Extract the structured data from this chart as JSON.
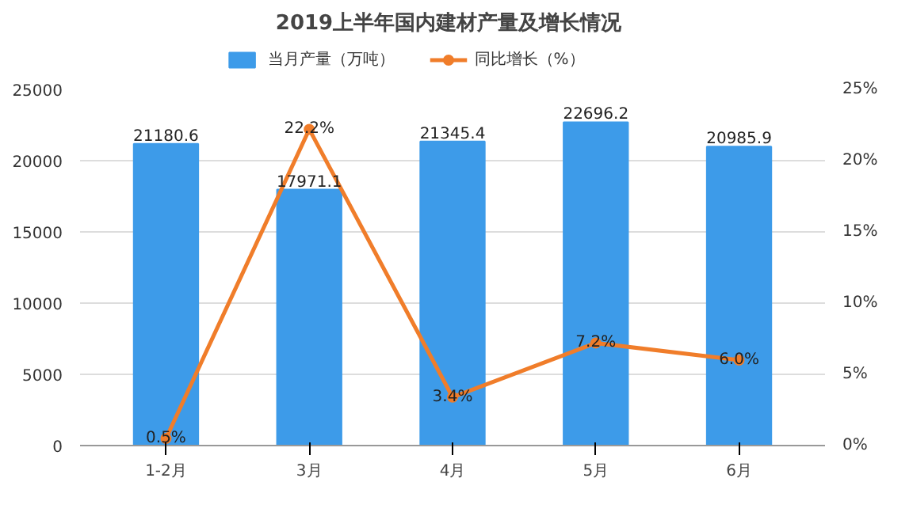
{
  "chart_data": {
    "type": "bar",
    "title": "2019上半年国内建材产量及增长情况",
    "categories": [
      "1-2月",
      "3月",
      "4月",
      "5月",
      "6月"
    ],
    "series": [
      {
        "name": "当月产量（万吨）",
        "color": "#3d9be9",
        "values": [
          21180.6,
          17971.1,
          21345.4,
          22696.2,
          20985.9
        ],
        "value_labels": [
          "21180.6",
          "17971.1",
          "21345.4",
          "22696.2",
          "20985.9"
        ]
      },
      {
        "name": "同比增长（%）",
        "type": "line",
        "axis": "y2",
        "color": "#f07d2a",
        "values": [
          0.5,
          22.2,
          3.4,
          7.2,
          6.0
        ],
        "value_labels": [
          "0.5%",
          "22.2%",
          "3.4%",
          "7.2%",
          "6.0%"
        ]
      }
    ],
    "ylim": [
      0,
      25000
    ],
    "yticks": [
      0,
      5000,
      10000,
      15000,
      20000,
      25000
    ],
    "y2lim": [
      0,
      25
    ],
    "y2ticks": [
      {
        "value": 0,
        "label": "0%"
      },
      {
        "value": 5,
        "label": "5%"
      },
      {
        "value": 10,
        "label": "10%"
      },
      {
        "value": 15,
        "label": "15%"
      },
      {
        "value": 20,
        "label": "20%"
      },
      {
        "value": 25,
        "label": "25%"
      }
    ],
    "grid": "y",
    "legend": "top",
    "marker": "circle"
  }
}
